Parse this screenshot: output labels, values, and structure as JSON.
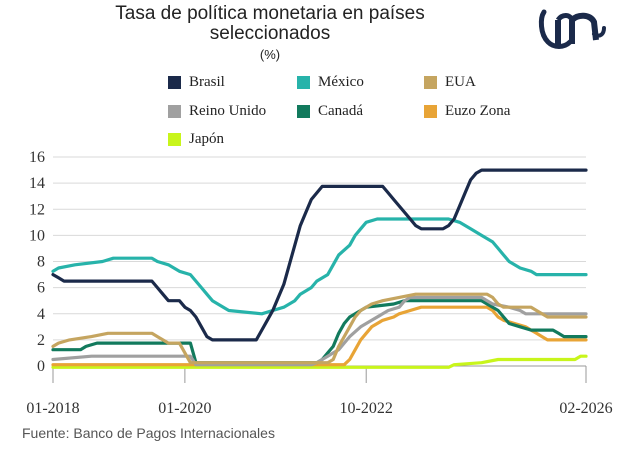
{
  "header": {
    "title": "Tasa de política monetaria en países seleccionados",
    "title_line1": "Tasa de política monetaria en países",
    "title_line2": "seleccionados",
    "unit": "(%)"
  },
  "legend": [
    {
      "name": "Brasil",
      "color": "#1b2a4a"
    },
    {
      "name": "México",
      "color": "#27b3aa"
    },
    {
      "name": "EUA",
      "color": "#c5a560"
    },
    {
      "name": "Reino Unido",
      "color": "#a0a0a0"
    },
    {
      "name": "Canadá",
      "color": "#127a5d"
    },
    {
      "name": "Euzo Zona",
      "color": "#e8a436"
    },
    {
      "name": "Japón",
      "color": "#c8f51b"
    }
  ],
  "source": "Fuente: Banco de Pagos Internacionales",
  "logo": {
    "icon": "company-logo-icon",
    "color": "#1b2a4a"
  },
  "chart_data": {
    "type": "line",
    "title": "Tasa de política monetaria en países seleccionados",
    "ylabel": "(%)",
    "xlabel": "",
    "ylim": [
      0,
      16
    ],
    "yticks": [
      0,
      2,
      4,
      6,
      8,
      10,
      12,
      14,
      16
    ],
    "xlim_months": [
      0,
      97
    ],
    "xticks": [
      {
        "label": "01-2018",
        "m": 0
      },
      {
        "label": "01-2020",
        "m": 24
      },
      {
        "label": "10-2022",
        "m": 57
      },
      {
        "label": "02-2026",
        "m": 97
      }
    ],
    "x_unit": "months since 01-2018",
    "grid": "horizontal",
    "series": [
      {
        "name": "Brasil",
        "color": "#1b2a4a",
        "points": [
          [
            0,
            7.0
          ],
          [
            1,
            6.75
          ],
          [
            2,
            6.5
          ],
          [
            18,
            6.5
          ],
          [
            19,
            6.0
          ],
          [
            20,
            5.5
          ],
          [
            21,
            5.0
          ],
          [
            23,
            5.0
          ],
          [
            24,
            4.5
          ],
          [
            25,
            4.25
          ],
          [
            26,
            3.75
          ],
          [
            27,
            3.0
          ],
          [
            28,
            2.25
          ],
          [
            29,
            2.0
          ],
          [
            37,
            2.0
          ],
          [
            38,
            2.75
          ],
          [
            39,
            3.5
          ],
          [
            40,
            4.25
          ],
          [
            41,
            5.25
          ],
          [
            42,
            6.25
          ],
          [
            43,
            7.75
          ],
          [
            44,
            9.25
          ],
          [
            45,
            10.75
          ],
          [
            46,
            11.75
          ],
          [
            47,
            12.75
          ],
          [
            48,
            13.25
          ],
          [
            49,
            13.75
          ],
          [
            60,
            13.75
          ],
          [
            61,
            13.25
          ],
          [
            62,
            12.75
          ],
          [
            63,
            12.25
          ],
          [
            64,
            11.75
          ],
          [
            65,
            11.25
          ],
          [
            66,
            10.75
          ],
          [
            67,
            10.5
          ],
          [
            71,
            10.5
          ],
          [
            72,
            10.75
          ],
          [
            73,
            11.25
          ],
          [
            74,
            12.25
          ],
          [
            75,
            13.25
          ],
          [
            76,
            14.25
          ],
          [
            77,
            14.75
          ],
          [
            78,
            15.0
          ],
          [
            97,
            15.0
          ]
        ]
      },
      {
        "name": "México",
        "color": "#27b3aa",
        "points": [
          [
            0,
            7.25
          ],
          [
            1,
            7.5
          ],
          [
            4,
            7.75
          ],
          [
            9,
            8.0
          ],
          [
            11,
            8.25
          ],
          [
            18,
            8.25
          ],
          [
            19,
            8.0
          ],
          [
            21,
            7.75
          ],
          [
            22,
            7.5
          ],
          [
            23,
            7.25
          ],
          [
            25,
            7.0
          ],
          [
            26,
            6.5
          ],
          [
            27,
            6.0
          ],
          [
            28,
            5.5
          ],
          [
            29,
            5.0
          ],
          [
            31,
            4.5
          ],
          [
            32,
            4.25
          ],
          [
            38,
            4.0
          ],
          [
            40,
            4.25
          ],
          [
            42,
            4.5
          ],
          [
            43,
            4.75
          ],
          [
            44,
            5.0
          ],
          [
            45,
            5.5
          ],
          [
            47,
            6.0
          ],
          [
            48,
            6.5
          ],
          [
            50,
            7.0
          ],
          [
            51,
            7.75
          ],
          [
            52,
            8.5
          ],
          [
            54,
            9.25
          ],
          [
            55,
            10.0
          ],
          [
            56,
            10.5
          ],
          [
            57,
            11.0
          ],
          [
            59,
            11.25
          ],
          [
            72,
            11.25
          ],
          [
            74,
            11.0
          ],
          [
            76,
            10.5
          ],
          [
            78,
            10.0
          ],
          [
            80,
            9.5
          ],
          [
            81,
            9.0
          ],
          [
            82,
            8.5
          ],
          [
            83,
            8.0
          ],
          [
            85,
            7.5
          ],
          [
            87,
            7.25
          ],
          [
            88,
            7.0
          ],
          [
            97,
            7.0
          ]
        ]
      },
      {
        "name": "EUA",
        "color": "#c5a560",
        "points": [
          [
            0,
            1.5
          ],
          [
            1,
            1.75
          ],
          [
            3,
            2.0
          ],
          [
            7,
            2.25
          ],
          [
            10,
            2.5
          ],
          [
            18,
            2.5
          ],
          [
            19,
            2.25
          ],
          [
            20,
            2.0
          ],
          [
            21,
            1.75
          ],
          [
            23,
            1.75
          ],
          [
            25,
            0.25
          ],
          [
            50,
            0.25
          ],
          [
            51,
            0.5
          ],
          [
            52,
            1.5
          ],
          [
            53,
            2.25
          ],
          [
            54,
            3.0
          ],
          [
            55,
            3.75
          ],
          [
            56,
            4.25
          ],
          [
            57,
            4.5
          ],
          [
            58,
            4.75
          ],
          [
            60,
            5.0
          ],
          [
            63,
            5.25
          ],
          [
            66,
            5.5
          ],
          [
            79,
            5.5
          ],
          [
            80,
            5.25
          ],
          [
            81,
            4.75
          ],
          [
            82,
            4.5
          ],
          [
            87,
            4.5
          ],
          [
            88,
            4.25
          ],
          [
            89,
            4.0
          ],
          [
            90,
            3.75
          ],
          [
            97,
            3.75
          ]
        ]
      },
      {
        "name": "Reino Unido",
        "color": "#a0a0a0",
        "points": [
          [
            0,
            0.5
          ],
          [
            7,
            0.75
          ],
          [
            25,
            0.75
          ],
          [
            26,
            0.1
          ],
          [
            47,
            0.1
          ],
          [
            48,
            0.25
          ],
          [
            49,
            0.5
          ],
          [
            50,
            0.75
          ],
          [
            51,
            1.0
          ],
          [
            52,
            1.25
          ],
          [
            53,
            1.75
          ],
          [
            54,
            2.25
          ],
          [
            56,
            3.0
          ],
          [
            58,
            3.5
          ],
          [
            60,
            4.0
          ],
          [
            61,
            4.25
          ],
          [
            63,
            4.5
          ],
          [
            64,
            5.0
          ],
          [
            65,
            5.25
          ],
          [
            78,
            5.25
          ],
          [
            79,
            5.0
          ],
          [
            80,
            4.75
          ],
          [
            83,
            4.5
          ],
          [
            85,
            4.25
          ],
          [
            86,
            4.0
          ],
          [
            97,
            4.0
          ]
        ]
      },
      {
        "name": "Canadá",
        "color": "#127a5d",
        "points": [
          [
            0,
            1.25
          ],
          [
            5,
            1.25
          ],
          [
            6,
            1.5
          ],
          [
            8,
            1.75
          ],
          [
            25,
            1.75
          ],
          [
            26,
            0.25
          ],
          [
            48,
            0.25
          ],
          [
            49,
            0.5
          ],
          [
            50,
            1.0
          ],
          [
            51,
            1.5
          ],
          [
            52,
            2.5
          ],
          [
            53,
            3.25
          ],
          [
            54,
            3.75
          ],
          [
            56,
            4.25
          ],
          [
            57,
            4.5
          ],
          [
            62,
            4.75
          ],
          [
            64,
            5.0
          ],
          [
            78,
            5.0
          ],
          [
            79,
            4.75
          ],
          [
            80,
            4.5
          ],
          [
            81,
            4.25
          ],
          [
            82,
            3.75
          ],
          [
            83,
            3.25
          ],
          [
            85,
            3.0
          ],
          [
            87,
            2.75
          ],
          [
            91,
            2.75
          ],
          [
            92,
            2.5
          ],
          [
            93,
            2.25
          ],
          [
            97,
            2.25
          ]
        ]
      },
      {
        "name": "Euzo Zona",
        "color": "#e8a436",
        "points": [
          [
            0,
            0.1
          ],
          [
            53,
            0.1
          ],
          [
            54,
            0.5
          ],
          [
            55,
            1.25
          ],
          [
            56,
            2.0
          ],
          [
            57,
            2.5
          ],
          [
            58,
            3.0
          ],
          [
            60,
            3.5
          ],
          [
            62,
            3.75
          ],
          [
            63,
            4.0
          ],
          [
            65,
            4.25
          ],
          [
            67,
            4.5
          ],
          [
            79,
            4.5
          ],
          [
            80,
            4.25
          ],
          [
            81,
            3.75
          ],
          [
            82,
            3.5
          ],
          [
            84,
            3.25
          ],
          [
            86,
            3.0
          ],
          [
            87,
            2.75
          ],
          [
            88,
            2.5
          ],
          [
            89,
            2.25
          ],
          [
            90,
            2.0
          ],
          [
            97,
            2.0
          ]
        ]
      },
      {
        "name": "Japón",
        "color": "#c8f51b",
        "points": [
          [
            0,
            -0.1
          ],
          [
            72,
            -0.1
          ],
          [
            73,
            0.1
          ],
          [
            78,
            0.25
          ],
          [
            81,
            0.5
          ],
          [
            95,
            0.5
          ],
          [
            96,
            0.75
          ],
          [
            97,
            0.75
          ]
        ]
      }
    ]
  }
}
